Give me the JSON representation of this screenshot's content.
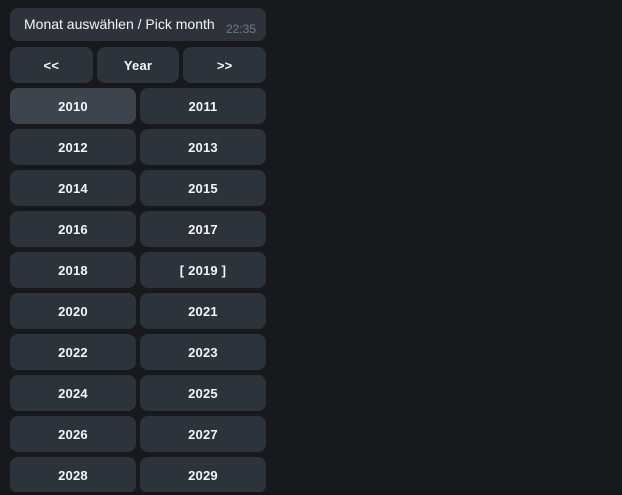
{
  "message": {
    "text": "Monat auswählen / Pick month",
    "time": "22:35"
  },
  "nav": {
    "prev_label": "<<",
    "year_label": "Year",
    "next_label": ">>"
  },
  "years": {
    "rows": [
      [
        "2010",
        "2011"
      ],
      [
        "2012",
        "2013"
      ],
      [
        "2014",
        "2015"
      ],
      [
        "2016",
        "2017"
      ],
      [
        "2018",
        "[ 2019 ]"
      ],
      [
        "2020",
        "2021"
      ],
      [
        "2022",
        "2023"
      ],
      [
        "2024",
        "2025"
      ],
      [
        "2026",
        "2027"
      ],
      [
        "2028",
        "2029"
      ]
    ],
    "current_year_display": "[ 2019 ]",
    "hovered_year": "2010"
  },
  "colors": {
    "background": "#17191d",
    "bubble": "#2e333b",
    "button": "#2d333a",
    "button_hover": "#3d444d",
    "text": "#f5f6f7",
    "timestamp": "#6f7a84",
    "bottom_strip": "#131518"
  }
}
